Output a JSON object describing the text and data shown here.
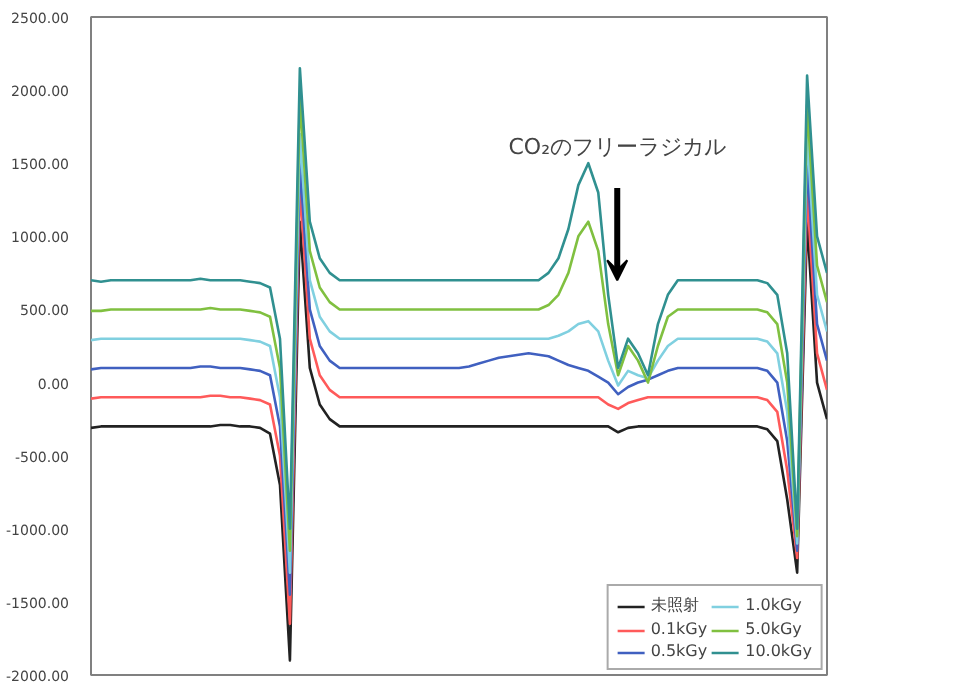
{
  "chart_data": {
    "type": "line",
    "categories": [
      null,
      null,
      null,
      null,
      null,
      null,
      null,
      null,
      null,
      null,
      null,
      null,
      null,
      null,
      null,
      null,
      null,
      null,
      null,
      null,
      null,
      null,
      null,
      null,
      null,
      null,
      null,
      null,
      null,
      null,
      null,
      null,
      null,
      null,
      null,
      null,
      null,
      null,
      null,
      null,
      null,
      null,
      null,
      null,
      null,
      null,
      null,
      null,
      null,
      null,
      null,
      null,
      null,
      null,
      null,
      null,
      null,
      null,
      null,
      null,
      null,
      null,
      null,
      null,
      null,
      null,
      null,
      null,
      null,
      null,
      null,
      null,
      null,
      null,
      null
    ],
    "series": [
      {
        "name": "未照射",
        "color": "#222222",
        "values": [
          -310,
          -300,
          -300,
          -300,
          -300,
          -300,
          -300,
          -300,
          -300,
          -300,
          -300,
          -300,
          -300,
          -290,
          -290,
          -300,
          -300,
          -310,
          -350,
          -700,
          -1900,
          1100,
          100,
          -150,
          -250,
          -300,
          -300,
          -300,
          -300,
          -300,
          -300,
          -300,
          -300,
          -300,
          -300,
          -300,
          -300,
          -300,
          -300,
          -300,
          -300,
          -300,
          -300,
          -300,
          -300,
          -300,
          -300,
          -300,
          -300,
          -300,
          -300,
          -300,
          -300,
          -340,
          -310,
          -300,
          -300,
          -300,
          -300,
          -300,
          -300,
          -300,
          -300,
          -300,
          -300,
          -300,
          -300,
          -300,
          -320,
          -400,
          -800,
          -1300,
          1100,
          0,
          -250
        ]
      },
      {
        "name": "0.1kGy",
        "color": "#ff5a5a",
        "values": [
          -110,
          -100,
          -100,
          -100,
          -100,
          -100,
          -100,
          -100,
          -100,
          -100,
          -100,
          -100,
          -90,
          -90,
          -100,
          -100,
          -110,
          -120,
          -150,
          -500,
          -1650,
          1350,
          300,
          50,
          -50,
          -100,
          -100,
          -100,
          -100,
          -100,
          -100,
          -100,
          -100,
          -100,
          -100,
          -100,
          -100,
          -100,
          -100,
          -100,
          -100,
          -100,
          -100,
          -100,
          -100,
          -100,
          -100,
          -100,
          -100,
          -100,
          -100,
          -100,
          -150,
          -180,
          -140,
          -120,
          -100,
          -100,
          -100,
          -100,
          -100,
          -100,
          -100,
          -100,
          -100,
          -100,
          -100,
          -100,
          -120,
          -200,
          -600,
          -1200,
          1300,
          200,
          -50
        ]
      },
      {
        "name": "0.5kGy",
        "color": "#4060c0",
        "values": [
          90,
          100,
          100,
          100,
          100,
          100,
          100,
          100,
          100,
          100,
          100,
          110,
          110,
          100,
          100,
          100,
          90,
          80,
          50,
          -300,
          -1450,
          1500,
          500,
          250,
          150,
          100,
          100,
          100,
          100,
          100,
          100,
          100,
          100,
          100,
          100,
          100,
          100,
          100,
          110,
          130,
          150,
          170,
          180,
          190,
          200,
          190,
          180,
          150,
          120,
          100,
          80,
          40,
          0,
          -80,
          -30,
          0,
          20,
          50,
          80,
          100,
          100,
          100,
          100,
          100,
          100,
          100,
          100,
          100,
          80,
          0,
          -400,
          -1150,
          1500,
          400,
          150
        ]
      },
      {
        "name": "1.0kGy",
        "color": "#80d0e0",
        "values": [
          290,
          300,
          300,
          300,
          300,
          300,
          300,
          300,
          300,
          300,
          300,
          300,
          300,
          300,
          300,
          300,
          290,
          280,
          250,
          -100,
          -1300,
          1700,
          700,
          450,
          350,
          300,
          300,
          300,
          300,
          300,
          300,
          300,
          300,
          300,
          300,
          300,
          300,
          300,
          300,
          300,
          300,
          300,
          300,
          300,
          300,
          300,
          300,
          320,
          350,
          400,
          420,
          350,
          150,
          -20,
          80,
          50,
          30,
          150,
          250,
          300,
          300,
          300,
          300,
          300,
          300,
          300,
          300,
          300,
          280,
          200,
          -200,
          -1100,
          1700,
          600,
          350
        ]
      },
      {
        "name": "5.0kGy",
        "color": "#80c040",
        "values": [
          490,
          490,
          500,
          500,
          500,
          500,
          500,
          500,
          500,
          500,
          500,
          500,
          510,
          500,
          500,
          500,
          490,
          480,
          450,
          100,
          -1150,
          1950,
          900,
          650,
          550,
          500,
          500,
          500,
          500,
          500,
          500,
          500,
          500,
          500,
          500,
          500,
          500,
          500,
          500,
          500,
          500,
          500,
          500,
          500,
          500,
          500,
          530,
          600,
          750,
          1000,
          1100,
          900,
          400,
          50,
          250,
          150,
          0,
          250,
          450,
          500,
          500,
          500,
          500,
          500,
          500,
          500,
          500,
          500,
          480,
          400,
          0,
          -1050,
          1900,
          800,
          550
        ]
      },
      {
        "name": "10.0kGy",
        "color": "#309090",
        "values": [
          700,
          690,
          700,
          700,
          700,
          700,
          700,
          700,
          700,
          700,
          700,
          710,
          700,
          700,
          700,
          700,
          690,
          680,
          650,
          300,
          -1000,
          2150,
          1100,
          850,
          750,
          700,
          700,
          700,
          700,
          700,
          700,
          700,
          700,
          700,
          700,
          700,
          700,
          700,
          700,
          700,
          700,
          700,
          700,
          700,
          700,
          700,
          750,
          850,
          1050,
          1350,
          1500,
          1300,
          600,
          100,
          300,
          200,
          50,
          400,
          600,
          700,
          700,
          700,
          700,
          700,
          700,
          700,
          700,
          700,
          680,
          600,
          200,
          -1000,
          2100,
          1000,
          750
        ]
      }
    ],
    "ylim": [
      -2000,
      2500
    ],
    "yticks": [
      {
        "value": -2000,
        "label": "-2000.00"
      },
      {
        "value": -1500,
        "label": "-1500.00"
      },
      {
        "value": -1000,
        "label": "-1000.00"
      },
      {
        "value": -500,
        "label": "-500.00"
      },
      {
        "value": 0,
        "label": "0.00"
      },
      {
        "value": 500,
        "label": "500.00"
      },
      {
        "value": 1000,
        "label": "1000.00"
      },
      {
        "value": 1500,
        "label": "1500.00"
      },
      {
        "value": 2000,
        "label": "2000.00"
      },
      {
        "value": 2500,
        "label": "2500.00"
      }
    ],
    "tick_labels": "y",
    "legend": "bottom right",
    "annotations": [
      {
        "text": "CO₂のフリーラジカル",
        "y": 700
      }
    ]
  }
}
